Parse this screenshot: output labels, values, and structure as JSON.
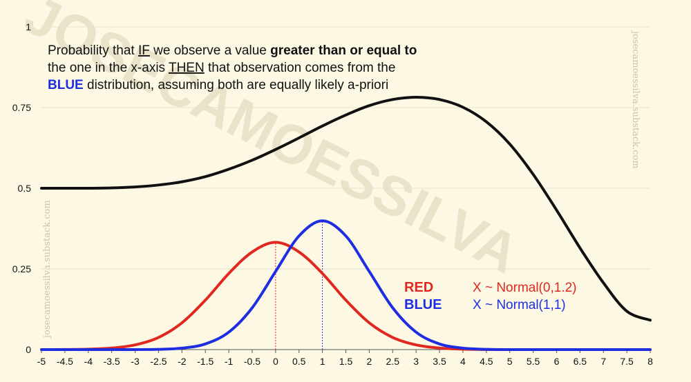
{
  "watermark": {
    "main": "JOSECAMOESSILVA",
    "side": "josecamoessilva.substack.com"
  },
  "chart_data": {
    "type": "line",
    "title_lines": [
      [
        {
          "t": "Probability that "
        },
        {
          "t": "IF",
          "u": true
        },
        {
          "t": " we observe a value "
        },
        {
          "t": "greater than or equal to",
          "b": true
        }
      ],
      [
        {
          "t": "the one in the x-axis "
        },
        {
          "t": "THEN",
          "u": true
        },
        {
          "t": " that observation comes from the"
        }
      ],
      [
        {
          "t": "BLUE",
          "b": true,
          "c": "#1f2de0"
        },
        {
          "t": " distribution, assuming both are equally likely a-priori"
        }
      ]
    ],
    "xlim": [
      -5,
      8
    ],
    "ylim": [
      0,
      1
    ],
    "x_ticks": [
      -5,
      -4.5,
      -4,
      -3.5,
      -3,
      -2.5,
      -2,
      -1.5,
      -1,
      -0.5,
      0,
      0.5,
      1,
      1.5,
      2,
      2.5,
      3,
      3.5,
      4,
      4.5,
      5,
      5.5,
      6,
      6.5,
      7,
      7.5,
      8
    ],
    "x_tick_labels": [
      "-5",
      "-4.5",
      "-4",
      "-3.5",
      "-3",
      "-2.5",
      "-2",
      "-1.5",
      "-1",
      "-0.5",
      "0",
      "0.5",
      "1",
      "1.5",
      "2",
      "2.5",
      "3",
      "3.5",
      "4",
      "4.5",
      "5",
      "5.5",
      "6",
      "6.5",
      "7",
      "7.5",
      "8"
    ],
    "y_ticks": [
      0,
      0.25,
      0.5,
      0.75,
      1
    ],
    "y_tick_labels": [
      "0",
      "0.25",
      "0.5",
      "0.75",
      "1"
    ],
    "grid": true,
    "series": [
      {
        "key": "prob",
        "color": "#111111",
        "x": [
          -5,
          -4.5,
          -4,
          -3.5,
          -3,
          -2.5,
          -2,
          -1.5,
          -1,
          -0.5,
          0,
          0.5,
          1,
          1.5,
          2,
          2.5,
          3,
          3.5,
          4,
          4.5,
          5,
          5.5,
          6,
          6.5,
          7,
          7.5,
          8
        ],
        "values": [
          0.5,
          0.5,
          0.5,
          0.501,
          0.504,
          0.51,
          0.52,
          0.536,
          0.559,
          0.587,
          0.62,
          0.656,
          0.693,
          0.727,
          0.756,
          0.775,
          0.782,
          0.775,
          0.751,
          0.706,
          0.637,
          0.543,
          0.432,
          0.315,
          0.207,
          0.119,
          0.091
        ]
      },
      {
        "key": "red",
        "name": "RED",
        "label": "X ~ Normal(0,1.2)",
        "color": "#e0281e",
        "x": [
          -5,
          -4.5,
          -4,
          -3.5,
          -3,
          -2.5,
          -2,
          -1.5,
          -1,
          -0.5,
          0,
          0.5,
          1,
          1.5,
          2,
          2.5,
          3,
          3.5,
          4,
          4.5,
          5,
          5.5,
          6,
          6.5,
          7,
          7.5,
          8
        ],
        "values": [
          0.0001,
          0.0003,
          0.0013,
          0.0047,
          0.0146,
          0.0377,
          0.083,
          0.1531,
          0.2359,
          0.3026,
          0.3324,
          0.3026,
          0.2359,
          0.1531,
          0.083,
          0.0377,
          0.0146,
          0.0047,
          0.0013,
          0.0003,
          0.0001,
          0,
          0,
          0,
          0,
          0,
          0
        ]
      },
      {
        "key": "blue",
        "name": "BLUE",
        "label": "X ~ Normal(1,1)",
        "color": "#1f2de0",
        "x": [
          -5,
          -4.5,
          -4,
          -3.5,
          -3,
          -2.5,
          -2,
          -1.5,
          -1,
          -0.5,
          0,
          0.5,
          1,
          1.5,
          2,
          2.5,
          3,
          3.5,
          4,
          4.5,
          5,
          5.5,
          6,
          6.5,
          7,
          7.5,
          8
        ],
        "values": [
          0,
          0,
          0,
          0,
          0.0001,
          0.0009,
          0.0044,
          0.0175,
          0.054,
          0.1295,
          0.242,
          0.3521,
          0.3989,
          0.3521,
          0.242,
          0.1295,
          0.054,
          0.0175,
          0.0044,
          0.0009,
          0.0001,
          0,
          0,
          0,
          0,
          0,
          0
        ]
      }
    ],
    "reference_lines": [
      {
        "x": 0,
        "y": 0.3324,
        "color": "#e0281e"
      },
      {
        "x": 1,
        "y": 0.3989,
        "color": "#1f2de0"
      }
    ]
  }
}
